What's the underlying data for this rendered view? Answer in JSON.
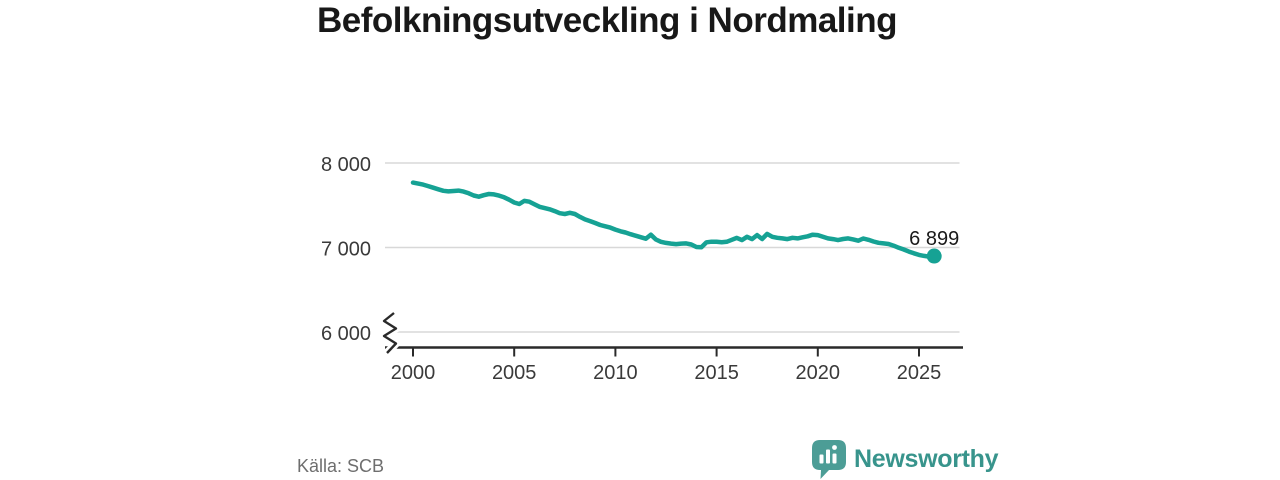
{
  "header": {
    "title": "Befolkningsutveckling i Nordmaling"
  },
  "footer": {
    "source": "Källa: SCB",
    "brand": "Newsworthy"
  },
  "colors": {
    "line": "#16a294",
    "grid": "#d8d8d8",
    "axis": "#2a2a2a",
    "tick_text": "#3a3a3a",
    "title_text": "#181818",
    "muted_text": "#6e6e6e",
    "brand_icon": "#4c9d96",
    "brand_text": "#38948c",
    "end_label_text": "#1a1a1a"
  },
  "chart_data": {
    "type": "line",
    "title": "Befolkningsutveckling i Nordmaling",
    "xlabel": "",
    "ylabel": "",
    "source": "Källa: SCB",
    "grid": "horizontal",
    "legend": "none",
    "axis_break_at_bottom": true,
    "xlim": [
      1998.6,
      2027.3
    ],
    "ylim_shown": [
      6000,
      8000
    ],
    "xticks": [
      2000,
      2005,
      2010,
      2015,
      2020,
      2025
    ],
    "yticks": [
      {
        "value": 8000,
        "label": "8 000"
      },
      {
        "value": 7000,
        "label": "7 000"
      },
      {
        "value": 6000,
        "label": "6 000"
      }
    ],
    "end_label": "6 899",
    "end_value": 6899,
    "series": [
      {
        "name": "Befolkning",
        "points": [
          [
            2000.0,
            7768
          ],
          [
            2000.25,
            7756
          ],
          [
            2000.5,
            7744
          ],
          [
            2000.75,
            7727
          ],
          [
            2001.0,
            7708
          ],
          [
            2001.25,
            7689
          ],
          [
            2001.5,
            7671
          ],
          [
            2001.75,
            7664
          ],
          [
            2002.0,
            7669
          ],
          [
            2002.25,
            7673
          ],
          [
            2002.5,
            7661
          ],
          [
            2002.75,
            7642
          ],
          [
            2003.0,
            7615
          ],
          [
            2003.25,
            7601
          ],
          [
            2003.5,
            7619
          ],
          [
            2003.75,
            7633
          ],
          [
            2004.0,
            7628
          ],
          [
            2004.25,
            7614
          ],
          [
            2004.5,
            7594
          ],
          [
            2004.75,
            7566
          ],
          [
            2005.0,
            7532
          ],
          [
            2005.25,
            7515
          ],
          [
            2005.5,
            7552
          ],
          [
            2005.75,
            7542
          ],
          [
            2006.0,
            7512
          ],
          [
            2006.25,
            7482
          ],
          [
            2006.5,
            7466
          ],
          [
            2006.75,
            7452
          ],
          [
            2007.0,
            7431
          ],
          [
            2007.25,
            7406
          ],
          [
            2007.5,
            7396
          ],
          [
            2007.75,
            7411
          ],
          [
            2008.0,
            7396
          ],
          [
            2008.25,
            7362
          ],
          [
            2008.5,
            7332
          ],
          [
            2008.75,
            7312
          ],
          [
            2009.0,
            7290
          ],
          [
            2009.25,
            7266
          ],
          [
            2009.5,
            7251
          ],
          [
            2009.75,
            7236
          ],
          [
            2010.0,
            7212
          ],
          [
            2010.25,
            7192
          ],
          [
            2010.5,
            7177
          ],
          [
            2010.75,
            7157
          ],
          [
            2011.0,
            7140
          ],
          [
            2011.25,
            7122
          ],
          [
            2011.5,
            7104
          ],
          [
            2011.75,
            7152
          ],
          [
            2012.0,
            7095
          ],
          [
            2012.25,
            7068
          ],
          [
            2012.5,
            7055
          ],
          [
            2012.75,
            7046
          ],
          [
            2013.0,
            7040
          ],
          [
            2013.25,
            7046
          ],
          [
            2013.5,
            7048
          ],
          [
            2013.75,
            7036
          ],
          [
            2014.0,
            7006
          ],
          [
            2014.25,
            7004
          ],
          [
            2014.5,
            7062
          ],
          [
            2014.75,
            7069
          ],
          [
            2015.0,
            7067
          ],
          [
            2015.25,
            7061
          ],
          [
            2015.5,
            7068
          ],
          [
            2015.75,
            7091
          ],
          [
            2016.0,
            7114
          ],
          [
            2016.25,
            7088
          ],
          [
            2016.5,
            7127
          ],
          [
            2016.75,
            7100
          ],
          [
            2017.0,
            7147
          ],
          [
            2017.25,
            7101
          ],
          [
            2017.5,
            7161
          ],
          [
            2017.75,
            7127
          ],
          [
            2018.0,
            7115
          ],
          [
            2018.25,
            7108
          ],
          [
            2018.5,
            7100
          ],
          [
            2018.75,
            7115
          ],
          [
            2019.0,
            7108
          ],
          [
            2019.25,
            7121
          ],
          [
            2019.5,
            7133
          ],
          [
            2019.75,
            7151
          ],
          [
            2020.0,
            7147
          ],
          [
            2020.25,
            7127
          ],
          [
            2020.5,
            7108
          ],
          [
            2020.75,
            7100
          ],
          [
            2021.0,
            7088
          ],
          [
            2021.25,
            7101
          ],
          [
            2021.5,
            7108
          ],
          [
            2021.75,
            7096
          ],
          [
            2022.0,
            7080
          ],
          [
            2022.25,
            7106
          ],
          [
            2022.5,
            7091
          ],
          [
            2022.75,
            7071
          ],
          [
            2023.0,
            7056
          ],
          [
            2023.25,
            7049
          ],
          [
            2023.5,
            7041
          ],
          [
            2023.75,
            7021
          ],
          [
            2024.0,
            6996
          ],
          [
            2024.25,
            6976
          ],
          [
            2024.5,
            6951
          ],
          [
            2024.75,
            6931
          ],
          [
            2025.0,
            6913
          ],
          [
            2025.25,
            6901
          ],
          [
            2025.5,
            6891
          ],
          [
            2025.75,
            6899
          ]
        ]
      }
    ]
  }
}
